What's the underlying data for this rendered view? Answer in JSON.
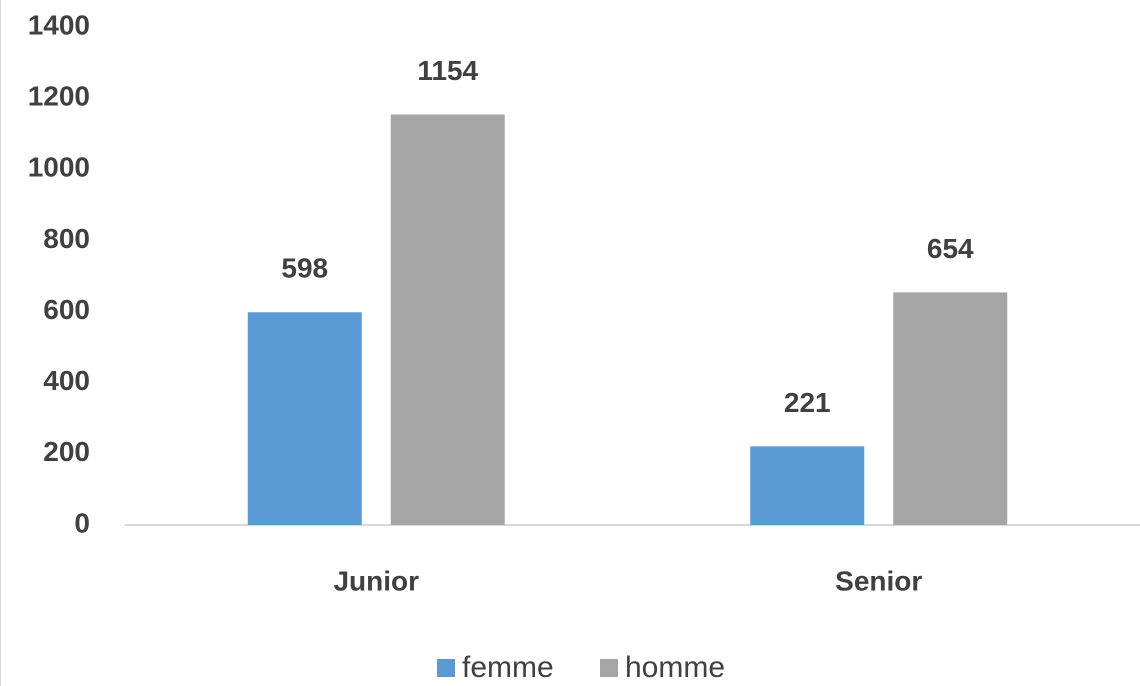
{
  "chart_data": {
    "type": "bar",
    "categories": [
      "Junior",
      "Senior"
    ],
    "series": [
      {
        "name": "femme",
        "color": "#5b9bd5",
        "values": [
          598,
          221
        ]
      },
      {
        "name": "homme",
        "color": "#a5a5a5",
        "values": [
          1154,
          654
        ]
      }
    ],
    "ylim": [
      0,
      1400
    ],
    "yticks": [
      0,
      200,
      400,
      600,
      800,
      1000,
      1200,
      1400
    ],
    "grid": false,
    "legend": "bottom"
  }
}
